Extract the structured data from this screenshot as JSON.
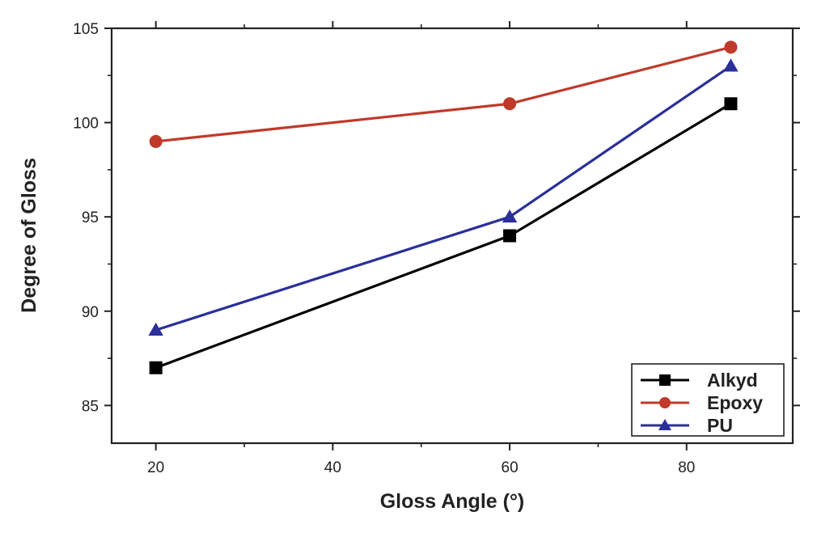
{
  "chart_data": {
    "type": "line",
    "title": "",
    "xlabel": "Gloss Angle (°)",
    "ylabel": "Degree of Gloss",
    "xlim": [
      15,
      92
    ],
    "ylim": [
      83,
      105
    ],
    "x_ticks": [
      20,
      40,
      60,
      80
    ],
    "y_ticks": [
      85,
      90,
      95,
      100,
      105
    ],
    "grid": false,
    "legend_position": "bottom-right",
    "x": [
      20,
      60,
      85
    ],
    "series": [
      {
        "name": "Alkyd",
        "values": [
          87,
          94,
          101
        ],
        "color": "#000000",
        "marker": "square"
      },
      {
        "name": "Epoxy",
        "values": [
          99,
          101,
          104
        ],
        "color": "#c0392b",
        "marker": "circle"
      },
      {
        "name": "PU",
        "values": [
          89,
          95,
          103
        ],
        "color": "#2a2f9a",
        "marker": "triangle"
      }
    ]
  }
}
